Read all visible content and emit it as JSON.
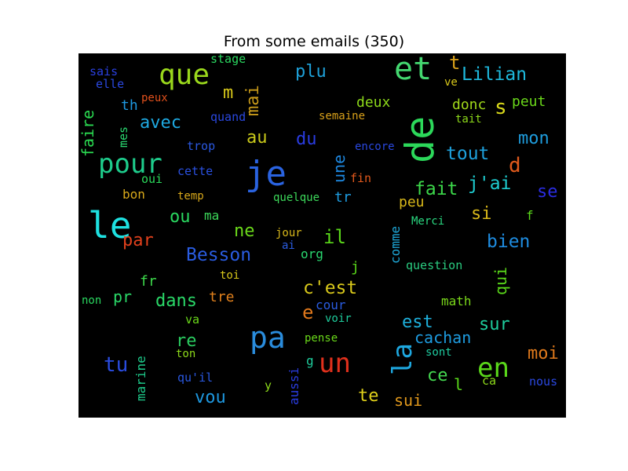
{
  "title": "From some emails (350)",
  "words": [
    {
      "text": "de",
      "color": "#2cd85a"
    },
    {
      "text": "je",
      "color": "#2a63e0"
    },
    {
      "text": "le",
      "color": "#1ee0e0"
    },
    {
      "text": "et",
      "color": "#44d870"
    },
    {
      "text": "que",
      "color": "#9ad81c"
    },
    {
      "text": "pa",
      "color": "#2a8cdc"
    },
    {
      "text": "un",
      "color": "#e0301c"
    },
    {
      "text": "en",
      "color": "#5ad81a"
    },
    {
      "text": "la",
      "color": "#1ea8e0"
    },
    {
      "text": "pour",
      "color": "#1ecc8c"
    },
    {
      "text": "Lilian",
      "color": "#1eb8dc"
    },
    {
      "text": "c'est",
      "color": "#d8c81a"
    },
    {
      "text": "Besson",
      "color": "#2a5ce0"
    },
    {
      "text": "fait",
      "color": "#3cd84a"
    },
    {
      "text": "j'ai",
      "color": "#1eccd0"
    },
    {
      "text": "tout",
      "color": "#1ea0dc"
    },
    {
      "text": "bien",
      "color": "#1e8ce0"
    },
    {
      "text": "avec",
      "color": "#1ea8e0"
    },
    {
      "text": "plu",
      "color": "#1ea0d8"
    },
    {
      "text": "mai",
      "color": "#c89a1a"
    },
    {
      "text": "mon",
      "color": "#1e9cdc"
    },
    {
      "text": "dans",
      "color": "#2ad868"
    },
    {
      "text": "par",
      "color": "#e0401c"
    },
    {
      "text": "tu",
      "color": "#2a4ce0"
    },
    {
      "text": "ce",
      "color": "#44d850"
    },
    {
      "text": "moi",
      "color": "#e07a1c"
    },
    {
      "text": "sur",
      "color": "#1ecc9c"
    },
    {
      "text": "est",
      "color": "#1eb0dc"
    },
    {
      "text": "se",
      "color": "#2a2ce0"
    },
    {
      "text": "d",
      "color": "#e05a1c"
    },
    {
      "text": "re",
      "color": "#2acc60"
    },
    {
      "text": "vou",
      "color": "#1e98e0"
    },
    {
      "text": "te",
      "color": "#e0d01a"
    },
    {
      "text": "au",
      "color": "#c8c81a"
    },
    {
      "text": "du",
      "color": "#2a3ce0"
    },
    {
      "text": "une",
      "color": "#1e88e0"
    },
    {
      "text": "il",
      "color": "#5ad81a"
    },
    {
      "text": "ou",
      "color": "#2ad860"
    },
    {
      "text": "ne",
      "color": "#6ad81a"
    },
    {
      "text": "si",
      "color": "#d8b81a"
    },
    {
      "text": "qui",
      "color": "#5ad81a"
    },
    {
      "text": "s",
      "color": "#d8d81a"
    },
    {
      "text": "t",
      "color": "#d8a01a"
    },
    {
      "text": "m",
      "color": "#d8c81a"
    },
    {
      "text": "e",
      "color": "#e0781c"
    },
    {
      "text": "sui",
      "color": "#e0981c"
    },
    {
      "text": "cachan",
      "color": "#1e9ce0"
    },
    {
      "text": "faire",
      "color": "#2ad850"
    },
    {
      "text": "deux",
      "color": "#8cd81a"
    },
    {
      "text": "donc",
      "color": "#a0d81a"
    },
    {
      "text": "peut",
      "color": "#6ad81a"
    },
    {
      "text": "tre",
      "color": "#e0801c"
    },
    {
      "text": "pr",
      "color": "#2ad868"
    },
    {
      "text": "peu",
      "color": "#d8b81a"
    },
    {
      "text": "l",
      "color": "#5ad81a"
    },
    {
      "text": "marine",
      "color": "#1ecc8c"
    },
    {
      "text": "aussi",
      "color": "#2a3ce0"
    },
    {
      "text": "comme",
      "color": "#1ea8d8"
    },
    {
      "text": "math",
      "color": "#7ad81a"
    },
    {
      "text": "th",
      "color": "#1e98e0"
    },
    {
      "text": "fr",
      "color": "#3cd84a"
    },
    {
      "text": "ma",
      "color": "#3cd85a"
    },
    {
      "text": "org",
      "color": "#2ad870"
    },
    {
      "text": "tr",
      "color": "#1e9ce0"
    },
    {
      "text": "cour",
      "color": "#2a5ce0"
    },
    {
      "text": "j",
      "color": "#5ad81a"
    },
    {
      "text": "stage",
      "color": "#2ad860"
    },
    {
      "text": "sais",
      "color": "#2a40e0"
    },
    {
      "text": "elle",
      "color": "#2a48e0"
    },
    {
      "text": "peux",
      "color": "#e0501c"
    },
    {
      "text": "mes",
      "color": "#2ad870"
    },
    {
      "text": "quand",
      "color": "#2a48e0"
    },
    {
      "text": "semaine",
      "color": "#d8a01a"
    },
    {
      "text": "tait",
      "color": "#8cd81a"
    },
    {
      "text": "ve",
      "color": "#d8c81a"
    },
    {
      "text": "trop",
      "color": "#2a58e0"
    },
    {
      "text": "encore",
      "color": "#2a48e0"
    },
    {
      "text": "cette",
      "color": "#2a50e0"
    },
    {
      "text": "oui",
      "color": "#2ad85a"
    },
    {
      "text": "fin",
      "color": "#e0581c"
    },
    {
      "text": "bon",
      "color": "#d8a81a"
    },
    {
      "text": "temp",
      "color": "#d8a81a"
    },
    {
      "text": "quelque",
      "color": "#3cd85a"
    },
    {
      "text": "Merci",
      "color": "#2ad880"
    },
    {
      "text": "f",
      "color": "#5ad81a"
    },
    {
      "text": "jour",
      "color": "#d8b81a"
    },
    {
      "text": "ai",
      "color": "#2a5ce0"
    },
    {
      "text": "question",
      "color": "#2acc80"
    },
    {
      "text": "toi",
      "color": "#d8c81a"
    },
    {
      "text": "non",
      "color": "#2ad860"
    },
    {
      "text": "va",
      "color": "#6ad81a"
    },
    {
      "text": "voir",
      "color": "#1ecc9c"
    },
    {
      "text": "pense",
      "color": "#6ad81a"
    },
    {
      "text": "ton",
      "color": "#8cd81a"
    },
    {
      "text": "sont",
      "color": "#1ecca0"
    },
    {
      "text": "qu'il",
      "color": "#2a58e0"
    },
    {
      "text": "g",
      "color": "#1ecc9c"
    },
    {
      "text": "ca",
      "color": "#8cd81a"
    },
    {
      "text": "nous",
      "color": "#2a48e0"
    },
    {
      "text": "y",
      "color": "#8cd81a"
    }
  ]
}
